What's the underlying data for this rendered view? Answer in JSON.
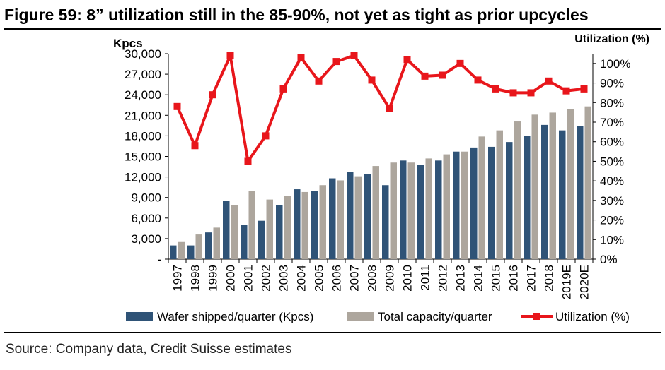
{
  "title": "Figure 59: 8” utilization still in the 85-90%, not yet as tight as prior upcycles",
  "source": "Source: Company data, Credit Suisse estimates",
  "colors": {
    "shipped": "#2F5377",
    "capacity": "#ADA69D",
    "utilization": "#E8161B"
  },
  "chart_data": {
    "type": "bar",
    "ylabel": "Kpcs",
    "y2label": "Utilization (%)",
    "ylim": [
      0,
      30000
    ],
    "y2lim": [
      0,
      1.05
    ],
    "yticks": [
      "-",
      "3,000",
      "6,000",
      "9,000",
      "12,000",
      "15,000",
      "18,000",
      "21,000",
      "24,000",
      "27,000",
      "30,000"
    ],
    "y2ticks": [
      "0%",
      "10%",
      "20%",
      "30%",
      "40%",
      "50%",
      "60%",
      "70%",
      "80%",
      "90%",
      "100%"
    ],
    "categories": [
      "1997",
      "1998",
      "1999",
      "2000",
      "2001",
      "2002",
      "2003",
      "2004",
      "2005",
      "2006",
      "2007",
      "2008",
      "2009",
      "2010",
      "2011",
      "2012",
      "2013",
      "2014",
      "2015",
      "2016",
      "2017",
      "2018",
      "2019E",
      "2020E"
    ],
    "series": [
      {
        "name": "Wafer shipped/quarter (Kpcs)",
        "type": "bar",
        "axis": "left",
        "values": [
          2000,
          2000,
          3900,
          8500,
          5000,
          5600,
          7900,
          10200,
          9900,
          11800,
          12700,
          12400,
          10800,
          14400,
          13800,
          14400,
          15700,
          16300,
          16400,
          17100,
          18000,
          19600,
          18800,
          19400
        ]
      },
      {
        "name": "Total capacity/quarter",
        "type": "bar",
        "axis": "left",
        "values": [
          2500,
          3600,
          4600,
          7900,
          9900,
          8700,
          9200,
          9800,
          10800,
          11500,
          12100,
          13600,
          14100,
          14100,
          14700,
          15300,
          15700,
          17900,
          18800,
          20100,
          21100,
          21400,
          21900,
          22300
        ]
      },
      {
        "name": "Utilization (%)",
        "type": "line",
        "axis": "right",
        "values": [
          0.78,
          0.58,
          0.84,
          1.04,
          0.5,
          0.63,
          0.87,
          1.03,
          0.91,
          1.01,
          1.04,
          0.915,
          0.77,
          1.02,
          0.935,
          0.94,
          1.0,
          0.915,
          0.87,
          0.85,
          0.85,
          0.91,
          0.86,
          0.87
        ]
      }
    ],
    "legend_position": "bottom",
    "grid": false
  }
}
